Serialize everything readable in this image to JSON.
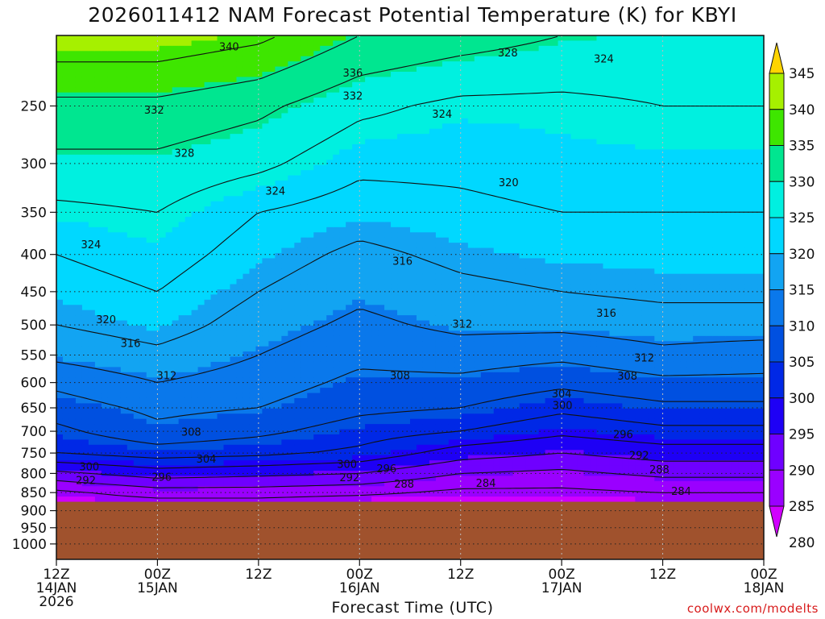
{
  "chart_data": {
    "type": "heatmap",
    "title": "2026011412 NAM Forecast Potential Temperature (K) for KBYI",
    "xlabel": "Forecast Time (UTC)",
    "ylabel": "",
    "x_ticks": [
      {
        "hour": 0,
        "lines": [
          "12Z",
          "14JAN",
          "2026"
        ]
      },
      {
        "hour": 12,
        "lines": [
          "00Z",
          "15JAN"
        ]
      },
      {
        "hour": 24,
        "lines": [
          "12Z"
        ]
      },
      {
        "hour": 36,
        "lines": [
          "00Z",
          "16JAN"
        ]
      },
      {
        "hour": 48,
        "lines": [
          "12Z"
        ]
      },
      {
        "hour": 60,
        "lines": [
          "00Z",
          "17JAN"
        ]
      },
      {
        "hour": 72,
        "lines": [
          "12Z"
        ]
      },
      {
        "hour": 84,
        "lines": [
          "00Z",
          "18JAN"
        ]
      }
    ],
    "xlim": [
      0,
      84
    ],
    "y_ticks": [
      250,
      300,
      350,
      400,
      450,
      500,
      550,
      600,
      650,
      700,
      750,
      800,
      850,
      900,
      950,
      1000
    ],
    "ylim": [
      1050,
      200
    ],
    "y_scale": "log",
    "surface_pressure": 875,
    "colorbar": {
      "levels": [
        280,
        285,
        290,
        295,
        300,
        305,
        310,
        315,
        320,
        325,
        330,
        335,
        340,
        345
      ],
      "colors": [
        "#d000ff",
        "#9a00ff",
        "#6f00ff",
        "#1e00f5",
        "#0028e6",
        "#0050e0",
        "#0a78eb",
        "#12a4f2",
        "#00d8ff",
        "#00f0e0",
        "#00e690",
        "#3ee600",
        "#a6f000",
        "#ffd400"
      ]
    },
    "profiles": [
      {
        "hour": 0,
        "p": [
          1000,
          900,
          880,
          850,
          800,
          750,
          700,
          650,
          600,
          550,
          500,
          450,
          400,
          350,
          300,
          250,
          200
        ],
        "theta": [
          280,
          280,
          281,
          283,
          291,
          300,
          303,
          306,
          309,
          313,
          316,
          318,
          320,
          323,
          327,
          331,
          339
        ]
      },
      {
        "hour": 12,
        "p": [
          1000,
          900,
          880,
          850,
          800,
          750,
          700,
          650,
          600,
          550,
          500,
          450,
          400,
          350,
          300,
          250,
          200
        ],
        "theta": [
          280,
          280,
          282,
          286,
          294,
          302,
          307,
          309,
          312,
          315,
          318,
          320,
          322,
          324,
          327,
          331,
          339
        ]
      },
      {
        "hour": 24,
        "p": [
          1000,
          900,
          880,
          850,
          800,
          750,
          700,
          650,
          600,
          550,
          500,
          450,
          400,
          350,
          300,
          250,
          200
        ],
        "theta": [
          280,
          280,
          282,
          286,
          293,
          301,
          305,
          308,
          310,
          312,
          314,
          316,
          318,
          320,
          325,
          329,
          337
        ]
      },
      {
        "hour": 36,
        "p": [
          1000,
          900,
          880,
          850,
          800,
          750,
          700,
          650,
          600,
          550,
          500,
          450,
          400,
          350,
          300,
          250,
          200
        ],
        "theta": [
          280,
          280,
          281,
          285,
          292,
          299,
          302,
          305,
          307,
          309,
          311,
          313,
          315,
          318,
          321,
          325,
          332
        ]
      },
      {
        "hour": 48,
        "p": [
          1000,
          900,
          880,
          850,
          800,
          750,
          700,
          650,
          600,
          550,
          500,
          450,
          400,
          350,
          300,
          250,
          200
        ],
        "theta": [
          280,
          280,
          281,
          283,
          288,
          294,
          300,
          304,
          307,
          310,
          313,
          315,
          317,
          319,
          321,
          323,
          330
        ]
      },
      {
        "hour": 60,
        "p": [
          1000,
          900,
          880,
          850,
          800,
          750,
          700,
          650,
          600,
          550,
          500,
          450,
          400,
          350,
          300,
          250,
          200
        ],
        "theta": [
          280,
          280,
          281,
          283,
          287,
          292,
          297,
          301,
          305,
          309,
          313,
          316,
          318,
          320,
          322,
          323,
          328
        ]
      },
      {
        "hour": 72,
        "p": [
          1000,
          900,
          880,
          850,
          800,
          750,
          700,
          650,
          600,
          550,
          500,
          450,
          400,
          350,
          300,
          250,
          200
        ],
        "theta": [
          280,
          280,
          282,
          284,
          289,
          294,
          299,
          303,
          307,
          311,
          314,
          317,
          318,
          320,
          322,
          324,
          327
        ]
      },
      {
        "hour": 84,
        "p": [
          1000,
          900,
          880,
          850,
          800,
          750,
          700,
          650,
          600,
          550,
          500,
          450,
          400,
          350,
          300,
          250,
          200
        ],
        "theta": [
          280,
          280,
          282,
          284,
          289,
          294,
          299,
          303,
          307,
          310,
          314,
          317,
          318,
          320,
          322,
          324,
          327
        ]
      }
    ],
    "contour_labels": [
      {
        "value": "340",
        "hour": 20.5,
        "p": 207
      },
      {
        "value": "336",
        "hour": 35.2,
        "p": 225
      },
      {
        "value": "332",
        "hour": 11.6,
        "p": 253
      },
      {
        "value": "332",
        "hour": 35.2,
        "p": 242
      },
      {
        "value": "328",
        "hour": 53.6,
        "p": 211
      },
      {
        "value": "328",
        "hour": 15.2,
        "p": 290
      },
      {
        "value": "324",
        "hour": 65.0,
        "p": 215
      },
      {
        "value": "324",
        "hour": 45.8,
        "p": 256
      },
      {
        "value": "324",
        "hour": 26.0,
        "p": 327
      },
      {
        "value": "324",
        "hour": 4.1,
        "p": 387
      },
      {
        "value": "320",
        "hour": 53.7,
        "p": 318
      },
      {
        "value": "320",
        "hour": 5.9,
        "p": 491
      },
      {
        "value": "316",
        "hour": 41.1,
        "p": 408
      },
      {
        "value": "316",
        "hour": 8.8,
        "p": 529
      },
      {
        "value": "316",
        "hour": 65.3,
        "p": 481
      },
      {
        "value": "312",
        "hour": 48.2,
        "p": 498
      },
      {
        "value": "312",
        "hour": 13.1,
        "p": 586
      },
      {
        "value": "312",
        "hour": 69.8,
        "p": 554
      },
      {
        "value": "308",
        "hour": 40.8,
        "p": 586
      },
      {
        "value": "308",
        "hour": 67.8,
        "p": 587
      },
      {
        "value": "308",
        "hour": 16.0,
        "p": 701
      },
      {
        "value": "304",
        "hour": 60.0,
        "p": 621
      },
      {
        "value": "304",
        "hour": 17.8,
        "p": 763
      },
      {
        "value": "300",
        "hour": 60.1,
        "p": 644
      },
      {
        "value": "300",
        "hour": 34.5,
        "p": 776
      },
      {
        "value": "300",
        "hour": 3.9,
        "p": 782
      },
      {
        "value": "296",
        "hour": 67.3,
        "p": 706
      },
      {
        "value": "296",
        "hour": 39.2,
        "p": 787
      },
      {
        "value": "296",
        "hour": 12.5,
        "p": 808
      },
      {
        "value": "292",
        "hour": 69.2,
        "p": 755
      },
      {
        "value": "292",
        "hour": 34.8,
        "p": 809
      },
      {
        "value": "292",
        "hour": 3.5,
        "p": 817
      },
      {
        "value": "288",
        "hour": 71.6,
        "p": 789
      },
      {
        "value": "288",
        "hour": 41.3,
        "p": 826
      },
      {
        "value": "284",
        "hour": 51.0,
        "p": 824
      },
      {
        "value": "284",
        "hour": 74.2,
        "p": 845
      }
    ]
  },
  "credit": "coolwx.com/modelts"
}
